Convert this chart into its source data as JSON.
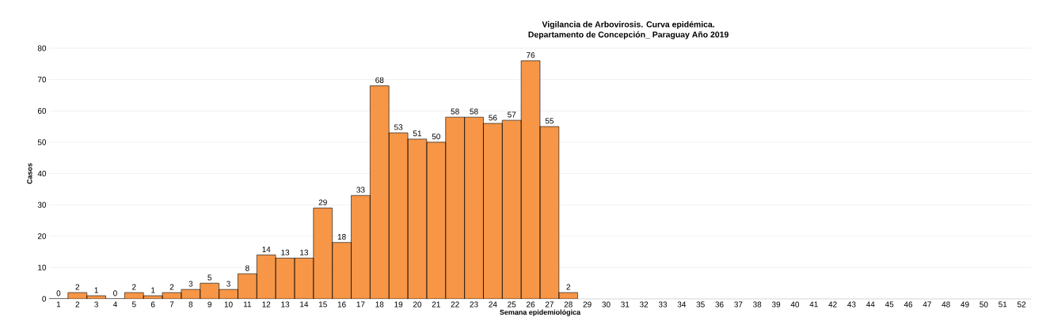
{
  "chart_data": {
    "type": "bar",
    "title": "Vigilancia de Arbovirosis. Curva epidémica.",
    "subtitle": "Departamento de Concepción_ Paraguay Año 2019",
    "xlabel": "Semana epidemiológica",
    "ylabel": "Casos",
    "categories": [
      "1",
      "2",
      "3",
      "4",
      "5",
      "6",
      "7",
      "8",
      "9",
      "10",
      "11",
      "12",
      "13",
      "14",
      "15",
      "16",
      "17",
      "18",
      "19",
      "20",
      "21",
      "22",
      "23",
      "24",
      "25",
      "26",
      "27",
      "28",
      "29",
      "30",
      "31",
      "32",
      "33",
      "34",
      "35",
      "36",
      "37",
      "38",
      "39",
      "40",
      "41",
      "42",
      "43",
      "44",
      "45",
      "46",
      "47",
      "48",
      "49",
      "50",
      "51",
      "52"
    ],
    "values": [
      0,
      2,
      1,
      0,
      2,
      1,
      2,
      3,
      5,
      3,
      8,
      14,
      13,
      13,
      29,
      18,
      33,
      68,
      53,
      51,
      50,
      58,
      58,
      56,
      57,
      76,
      55,
      2,
      null,
      null,
      null,
      null,
      null,
      null,
      null,
      null,
      null,
      null,
      null,
      null,
      null,
      null,
      null,
      null,
      null,
      null,
      null,
      null,
      null,
      null,
      null,
      null
    ],
    "color": "#f79646",
    "ylim": [
      0,
      80
    ],
    "yticks": [
      0,
      10,
      20,
      30,
      40,
      50,
      60,
      70,
      80
    ],
    "grid": "y",
    "data_labels": true
  }
}
